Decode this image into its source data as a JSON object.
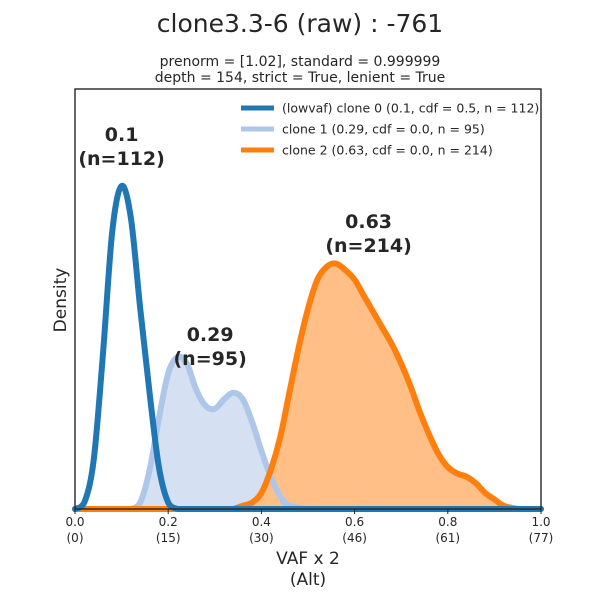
{
  "chart_data": {
    "type": "area",
    "title": "clone3.3-6 (raw) : -761",
    "subtitle_lines": [
      "prenorm = [1.02], standard = 0.999999",
      "depth = 154, strict = True, lenient = True"
    ],
    "xlabel_lines": [
      "VAF x 2",
      "(Alt)"
    ],
    "ylabel": "Density",
    "xlim": [
      0,
      1
    ],
    "ylim": [
      0,
      1
    ],
    "x_ticks": [
      {
        "value": 0.0,
        "label": "0.0",
        "sublabel": "(0)"
      },
      {
        "value": 0.2,
        "label": "0.2",
        "sublabel": "(15)"
      },
      {
        "value": 0.4,
        "label": "0.4",
        "sublabel": "(30)"
      },
      {
        "value": 0.6,
        "label": "0.6",
        "sublabel": "(46)"
      },
      {
        "value": 0.8,
        "label": "0.8",
        "sublabel": "(61)"
      },
      {
        "value": 1.0,
        "label": "1.0",
        "sublabel": "(77)"
      }
    ],
    "legend_position": "top-right",
    "series": [
      {
        "name": "(lowvaf) clone 0 (0.1, cdf = 0.5, n = 112)",
        "color": "#1f77b4",
        "filled": false,
        "peak_label": {
          "x": 0.1,
          "y": 1.14,
          "line1": "0.1",
          "line2": "(n=112)"
        },
        "points": [
          [
            0.0,
            0.0
          ],
          [
            0.02,
            0.02
          ],
          [
            0.04,
            0.15
          ],
          [
            0.06,
            0.48
          ],
          [
            0.08,
            0.86
          ],
          [
            0.1,
            1.0
          ],
          [
            0.12,
            0.9
          ],
          [
            0.14,
            0.62
          ],
          [
            0.16,
            0.36
          ],
          [
            0.18,
            0.13
          ],
          [
            0.2,
            0.02
          ],
          [
            0.22,
            0.0
          ]
        ]
      },
      {
        "name": "clone 1 (0.29, cdf = 0.0, n = 95)",
        "color": "#aec7e8",
        "filled": true,
        "fill_color": "#d5e0f2",
        "peak_label": {
          "x": 0.29,
          "y": 0.52,
          "line1": "0.29",
          "line2": "(n=95)"
        },
        "points": [
          [
            0.12,
            0.0
          ],
          [
            0.14,
            0.02
          ],
          [
            0.16,
            0.12
          ],
          [
            0.18,
            0.28
          ],
          [
            0.2,
            0.42
          ],
          [
            0.22,
            0.47
          ],
          [
            0.24,
            0.45
          ],
          [
            0.26,
            0.37
          ],
          [
            0.28,
            0.32
          ],
          [
            0.3,
            0.31
          ],
          [
            0.32,
            0.34
          ],
          [
            0.34,
            0.36
          ],
          [
            0.36,
            0.34
          ],
          [
            0.38,
            0.27
          ],
          [
            0.4,
            0.18
          ],
          [
            0.42,
            0.1
          ],
          [
            0.44,
            0.04
          ],
          [
            0.46,
            0.01
          ],
          [
            0.5,
            0.0
          ]
        ]
      },
      {
        "name": "clone 2 (0.63, cdf = 0.0, n = 214)",
        "color": "#ff7f0e",
        "filled": true,
        "fill_color": "#ffbf87",
        "peak_label": {
          "x": 0.63,
          "y": 0.87,
          "line1": "0.63",
          "line2": "(n=214)"
        },
        "points": [
          [
            0.34,
            0.0
          ],
          [
            0.36,
            0.01
          ],
          [
            0.38,
            0.02
          ],
          [
            0.4,
            0.05
          ],
          [
            0.42,
            0.12
          ],
          [
            0.44,
            0.22
          ],
          [
            0.46,
            0.36
          ],
          [
            0.48,
            0.5
          ],
          [
            0.5,
            0.62
          ],
          [
            0.52,
            0.71
          ],
          [
            0.54,
            0.75
          ],
          [
            0.56,
            0.76
          ],
          [
            0.58,
            0.74
          ],
          [
            0.6,
            0.71
          ],
          [
            0.62,
            0.66
          ],
          [
            0.64,
            0.61
          ],
          [
            0.66,
            0.56
          ],
          [
            0.68,
            0.51
          ],
          [
            0.7,
            0.45
          ],
          [
            0.72,
            0.38
          ],
          [
            0.74,
            0.3
          ],
          [
            0.76,
            0.23
          ],
          [
            0.78,
            0.17
          ],
          [
            0.8,
            0.13
          ],
          [
            0.82,
            0.11
          ],
          [
            0.84,
            0.1
          ],
          [
            0.86,
            0.08
          ],
          [
            0.88,
            0.05
          ],
          [
            0.9,
            0.03
          ],
          [
            0.92,
            0.01
          ],
          [
            0.95,
            0.0
          ]
        ]
      }
    ]
  }
}
